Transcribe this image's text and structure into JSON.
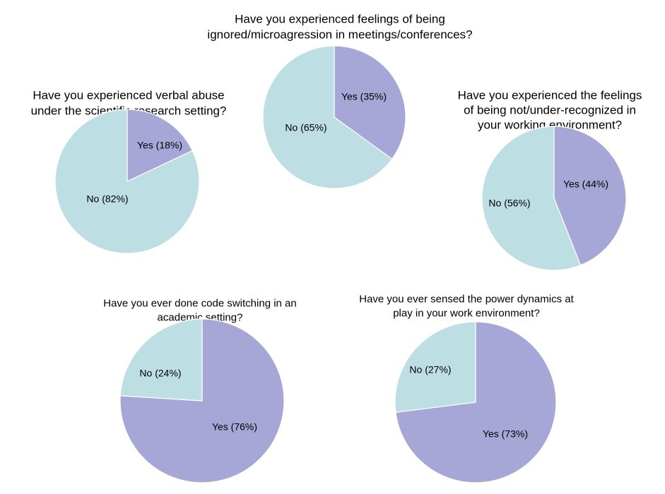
{
  "chart_data": [
    {
      "type": "pie",
      "title_lines": [
        "Have you experienced verbal abuse",
        "under the scientific research setting?"
      ],
      "slices": [
        {
          "label": "Yes (18%)",
          "category": "Yes",
          "value": 18,
          "color": "#a6a6d7"
        },
        {
          "label": "No (82%)",
          "category": "No",
          "value": 82,
          "color": "#bddee2"
        }
      ]
    },
    {
      "type": "pie",
      "title_lines": [
        "Have you experienced feelings of being",
        "ignored/microagression in meetings/conferences?"
      ],
      "slices": [
        {
          "label": "Yes (35%)",
          "category": "Yes",
          "value": 35,
          "color": "#a6a6d7"
        },
        {
          "label": "No (65%)",
          "category": "No",
          "value": 65,
          "color": "#bddee2"
        }
      ]
    },
    {
      "type": "pie",
      "title_lines": [
        "Have you experienced the feelings",
        "of being not/under-recognized in",
        "your working environment?"
      ],
      "slices": [
        {
          "label": "Yes (44%)",
          "category": "Yes",
          "value": 44,
          "color": "#a6a6d7"
        },
        {
          "label": "No (56%)",
          "category": "No",
          "value": 56,
          "color": "#bddee2"
        }
      ]
    },
    {
      "type": "pie",
      "title_lines": [
        "Have you ever done code switching in an",
        "academic setting?"
      ],
      "slices": [
        {
          "label": "Yes (76%)",
          "category": "Yes",
          "value": 76,
          "color": "#a6a6d7"
        },
        {
          "label": "No (24%)",
          "category": "No",
          "value": 24,
          "color": "#bddee2"
        }
      ]
    },
    {
      "type": "pie",
      "title_lines": [
        "Have you ever sensed the power dynamics at",
        "play in your work environment?"
      ],
      "slices": [
        {
          "label": "Yes (73%)",
          "category": "Yes",
          "value": 73,
          "color": "#a6a6d7"
        },
        {
          "label": "No (27%)",
          "category": "No",
          "value": 27,
          "color": "#bddee2"
        }
      ]
    }
  ]
}
